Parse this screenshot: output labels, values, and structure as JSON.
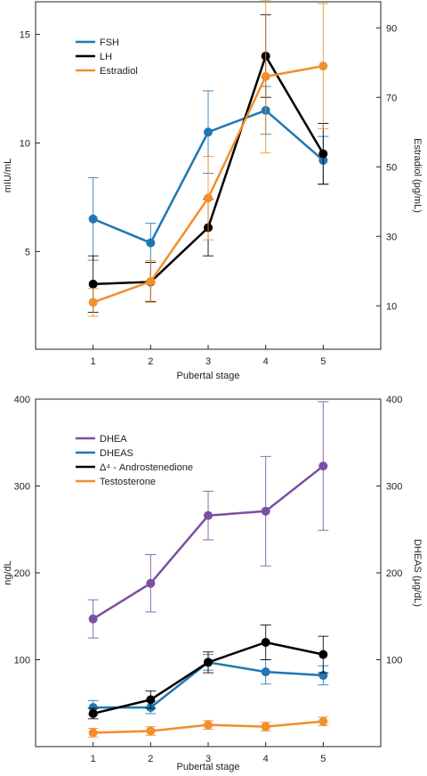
{
  "chart_data": [
    {
      "type": "line",
      "xlabel": "Pubertal stage",
      "ylabel_left": "mIU/mL",
      "ylabel_right": "Estradiol (pg/mL)",
      "x": [
        1,
        2,
        3,
        4,
        5
      ],
      "x_ticks": [
        "1",
        "2",
        "3",
        "4",
        "5"
      ],
      "xlim": [
        0,
        6
      ],
      "ylim_left": [
        0.5,
        16.5
      ],
      "ylim_right": [
        -2.5,
        97.5
      ],
      "yticks_left": [
        "5",
        "10",
        "15"
      ],
      "yticks_right": [
        "10",
        "30",
        "50",
        "70",
        "90"
      ],
      "legend_position": "top-left",
      "series": [
        {
          "name": "FSH",
          "axis": "left",
          "color": "#1f77b4",
          "values": [
            6.5,
            5.4,
            10.5,
            11.5,
            9.2
          ],
          "errors": [
            1.9,
            0.9,
            1.9,
            1.1,
            1.1
          ]
        },
        {
          "name": "LH",
          "axis": "left",
          "color": "#000000",
          "values": [
            3.5,
            3.6,
            6.1,
            14.0,
            9.5
          ],
          "errors": [
            1.3,
            0.9,
            1.3,
            1.9,
            1.4
          ]
        },
        {
          "name": "Estradiol",
          "axis": "right",
          "color": "#f28e2b",
          "values": [
            11,
            17,
            41,
            76,
            79
          ],
          "errors": [
            4,
            6,
            12,
            22,
            18
          ]
        }
      ]
    },
    {
      "type": "line",
      "xlabel": "Pubertal stage",
      "ylabel_left": "ng/dL",
      "ylabel_right": "DHEAS (µg/dL)",
      "x": [
        1,
        2,
        3,
        4,
        5
      ],
      "x_ticks": [
        "1",
        "2",
        "3",
        "4",
        "5"
      ],
      "xlim": [
        0,
        6
      ],
      "ylim_left": [
        0,
        400
      ],
      "ylim_right": [
        0,
        400
      ],
      "yticks_left": [
        "100",
        "200",
        "300",
        "400"
      ],
      "yticks_right": [
        "100",
        "200",
        "300",
        "400"
      ],
      "legend_position": "top-left",
      "series": [
        {
          "name": "DHEA",
          "axis": "left",
          "color": "#7b4fa3",
          "values": [
            147,
            188,
            266,
            271,
            323
          ],
          "errors": [
            22,
            33,
            28,
            63,
            74
          ]
        },
        {
          "name": "DHEAS",
          "axis": "right",
          "color": "#1f77b4",
          "values": [
            45,
            45,
            97,
            86,
            82
          ],
          "errors": [
            8,
            7,
            9,
            14,
            11
          ]
        },
        {
          "name": "Δ⁴ - Androstenedione",
          "axis": "left",
          "color": "#000000",
          "values": [
            38,
            54,
            97,
            120,
            106
          ],
          "errors": [
            6,
            10,
            12,
            20,
            21
          ]
        },
        {
          "name": "Testosterone",
          "axis": "left",
          "color": "#f28e2b",
          "values": [
            16,
            18,
            25,
            23,
            29
          ],
          "errors": [
            5,
            5,
            5,
            5,
            5
          ]
        }
      ]
    }
  ]
}
